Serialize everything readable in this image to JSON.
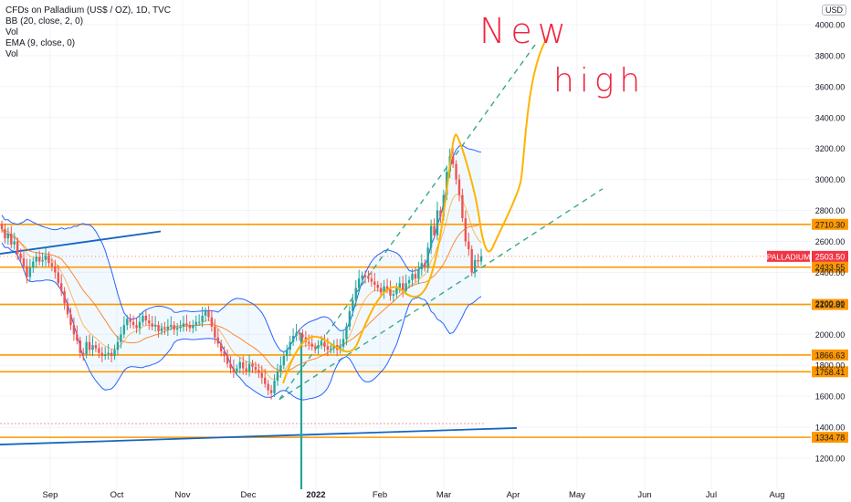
{
  "legend": {
    "title": "CFDs on Palladium (US$ / OZ), 1D, TVC",
    "bb": "BB (20, close, 2, 0)",
    "vol1": "Vol",
    "ema": "EMA (9, close, 0)",
    "vol2": "Vol"
  },
  "currency": "USD",
  "annotation": {
    "line1": "New",
    "line2": "high"
  },
  "colors": {
    "up": "#26a69a",
    "down": "#ef5350",
    "band": "#2962ff",
    "ema": "#ff6d00",
    "hline": "#ff9800",
    "trend": "#1565c0",
    "channel": "#3aa888",
    "sketch": "#ffb300",
    "annotation": "#f0243f",
    "price_label": "#f23645"
  },
  "chart_data": {
    "type": "candlestick",
    "y_axis": {
      "min": 1000,
      "max": 4150,
      "ticks": [
        1200,
        1400,
        1600,
        1800,
        2000,
        2200,
        2400,
        2600,
        2800,
        3000,
        3200,
        3400,
        3600,
        3800,
        4000
      ]
    },
    "x_axis": {
      "labels": [
        "Sep",
        "Oct",
        "Nov",
        "Dec",
        "2022",
        "Feb",
        "Mar",
        "Apr",
        "May",
        "Jun",
        "Jul",
        "Aug"
      ]
    },
    "horizontal_levels": [
      {
        "label": "2710.30",
        "value": 2710.3
      },
      {
        "label": "2433.55",
        "value": 2433.55
      },
      {
        "label": "2192.81",
        "value": 2192.81
      },
      {
        "label": "1866.63",
        "value": 1866.63
      },
      {
        "label": "1758.41",
        "value": 1758.41
      },
      {
        "label": "1334.78",
        "value": 1334.78
      }
    ],
    "last_price": {
      "symbol": "PALLADIUM",
      "value": 2503.5,
      "label": "2503.50"
    },
    "closes": [
      2680,
      2620,
      2650,
      2580,
      2600,
      2520,
      2490,
      2440,
      2370,
      2430,
      2470,
      2500,
      2470,
      2480,
      2510,
      2460,
      2440,
      2400,
      2330,
      2280,
      2200,
      2130,
      2060,
      2000,
      1960,
      1880,
      1870,
      1950,
      1900,
      1930,
      1910,
      1880,
      1860,
      1870,
      1880,
      1860,
      1900,
      1950,
      2000,
      2060,
      2100,
      2080,
      2060,
      2040,
      2080,
      2120,
      2090,
      2070,
      2050,
      2060,
      2020,
      2040,
      2030,
      2050,
      2060,
      2030,
      2040,
      2050,
      2070,
      2060,
      2040,
      2060,
      2080,
      2080,
      2120,
      2150,
      2110,
      2050,
      1980,
      1940,
      1890,
      1860,
      1810,
      1780,
      1760,
      1780,
      1820,
      1780,
      1760,
      1810,
      1790,
      1770,
      1750,
      1720,
      1680,
      1640,
      1620,
      1700,
      1760,
      1800,
      1860,
      1900,
      1950,
      1990,
      2010,
      2000,
      1980,
      1950,
      1940,
      1920,
      1910,
      1930,
      1950,
      1920,
      1900,
      1910,
      1930,
      1900,
      1920,
      1970,
      2050,
      2150,
      2220,
      2300,
      2360,
      2380,
      2370,
      2360,
      2340,
      2320,
      2300,
      2270,
      2310,
      2290,
      2250,
      2260,
      2300,
      2330,
      2280,
      2330,
      2350,
      2390,
      2360,
      2420,
      2460,
      2430,
      2560,
      2700,
      2640,
      2800,
      2760,
      2900,
      3050,
      3150,
      3100,
      3000,
      2900,
      2750,
      2600,
      2550,
      2400,
      2480,
      2470,
      2503.5
    ]
  }
}
